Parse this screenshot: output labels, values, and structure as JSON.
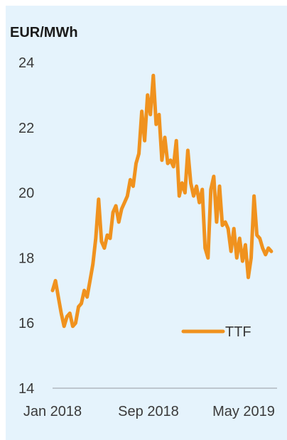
{
  "chart_data": {
    "type": "line",
    "unit_label": "EUR/MWh",
    "x_ticks": [
      "Jan 2018",
      "Sep 2018",
      "May 2019"
    ],
    "y_ticks": [
      14,
      16,
      18,
      20,
      22,
      24
    ],
    "ylim": [
      14,
      24
    ],
    "xlim": [
      "2018-01-01",
      "2019-07-01"
    ],
    "legend": {
      "position": "lower-right",
      "entries": [
        "TTF"
      ]
    },
    "colors": {
      "series": "#f0921e",
      "background": "#e5f3fc",
      "axis": "#b0b8be"
    },
    "series": [
      {
        "name": "TTF",
        "x": [
          "2018-01-01",
          "2018-01-08",
          "2018-01-15",
          "2018-01-22",
          "2018-01-29",
          "2018-02-05",
          "2018-02-12",
          "2018-02-19",
          "2018-02-26",
          "2018-03-05",
          "2018-03-12",
          "2018-03-19",
          "2018-03-26",
          "2018-04-02",
          "2018-04-09",
          "2018-04-16",
          "2018-04-23",
          "2018-04-30",
          "2018-05-07",
          "2018-05-14",
          "2018-05-21",
          "2018-05-28",
          "2018-06-04",
          "2018-06-11",
          "2018-06-18",
          "2018-06-25",
          "2018-07-02",
          "2018-07-09",
          "2018-07-16",
          "2018-07-23",
          "2018-07-30",
          "2018-08-06",
          "2018-08-13",
          "2018-08-20",
          "2018-08-27",
          "2018-09-03",
          "2018-09-10",
          "2018-09-17",
          "2018-09-24",
          "2018-10-01",
          "2018-10-08",
          "2018-10-15",
          "2018-10-22",
          "2018-10-29",
          "2018-11-05",
          "2018-11-12",
          "2018-11-19",
          "2018-11-26",
          "2018-12-03",
          "2018-12-10",
          "2018-12-17",
          "2018-12-24",
          "2018-12-31",
          "2019-01-07",
          "2019-01-14",
          "2019-01-21",
          "2019-01-28",
          "2019-02-04",
          "2019-02-11",
          "2019-02-18",
          "2019-02-25",
          "2019-03-04",
          "2019-03-11",
          "2019-03-18",
          "2019-03-25",
          "2019-04-01",
          "2019-04-08",
          "2019-04-15",
          "2019-04-22",
          "2019-04-29",
          "2019-05-06",
          "2019-05-13",
          "2019-05-20",
          "2019-05-27",
          "2019-06-03",
          "2019-06-10",
          "2019-06-17"
        ],
        "values": [
          17.0,
          17.3,
          16.8,
          16.3,
          15.9,
          16.2,
          16.3,
          15.9,
          16.0,
          16.5,
          16.6,
          17.0,
          16.8,
          17.3,
          17.8,
          18.6,
          19.8,
          18.5,
          18.3,
          18.7,
          18.6,
          19.4,
          19.6,
          19.1,
          19.5,
          19.7,
          19.9,
          20.4,
          20.2,
          20.9,
          21.2,
          22.5,
          21.6,
          23.0,
          22.4,
          23.6,
          22.1,
          22.4,
          21.0,
          21.7,
          20.9,
          21.0,
          20.8,
          21.6,
          19.9,
          20.3,
          20.0,
          21.3,
          20.3,
          19.9,
          20.2,
          19.7,
          20.1,
          18.3,
          18.0,
          20.1,
          20.5,
          19.1,
          20.2,
          19.0,
          19.1,
          18.9,
          18.2,
          18.9,
          18.0,
          18.6,
          17.9,
          18.4,
          17.4,
          18.0,
          19.9,
          18.7,
          18.6,
          18.3,
          18.1,
          18.3,
          18.2
        ]
      }
    ]
  }
}
